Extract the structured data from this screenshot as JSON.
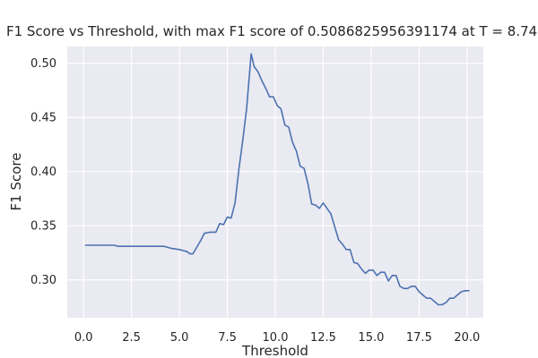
{
  "chart_data": {
    "type": "line",
    "title": "F1 Score vs Threshold, with max F1 score of 0.5086825956391174 at T = 8.74)",
    "xlabel": "Threshold",
    "ylabel": "F1 Score",
    "xlim": [
      -0.85,
      20.85
    ],
    "ylim": [
      0.265,
      0.5155
    ],
    "xticks": [
      0.0,
      2.5,
      5.0,
      7.5,
      10.0,
      12.5,
      15.0,
      17.5,
      20.0
    ],
    "xtick_labels": [
      "0.0",
      "2.5",
      "5.0",
      "7.5",
      "10.0",
      "12.5",
      "15.0",
      "17.5",
      "20.0"
    ],
    "yticks": [
      0.3,
      0.35,
      0.4,
      0.45,
      0.5
    ],
    "ytick_labels": [
      "0.30",
      "0.35",
      "0.40",
      "0.45",
      "0.50"
    ],
    "grid": true,
    "background": "#eaeaf2",
    "series": [
      {
        "color": "#4c72b0",
        "x": [
          0.1,
          1.6,
          1.8,
          4.2,
          4.6,
          5.0,
          5.2,
          5.4,
          5.55,
          5.7,
          6.1,
          6.3,
          6.6,
          6.9,
          7.1,
          7.3,
          7.5,
          7.7,
          7.9,
          8.1,
          8.3,
          8.5,
          8.74,
          8.9,
          9.1,
          9.3,
          9.5,
          9.7,
          9.9,
          10.1,
          10.3,
          10.5,
          10.7,
          10.9,
          11.1,
          11.3,
          11.5,
          11.7,
          11.9,
          12.1,
          12.3,
          12.5,
          12.7,
          12.9,
          13.1,
          13.3,
          13.5,
          13.7,
          13.9,
          14.1,
          14.3,
          14.5,
          14.7,
          14.9,
          15.1,
          15.3,
          15.5,
          15.7,
          15.9,
          16.1,
          16.3,
          16.5,
          16.7,
          16.9,
          17.1,
          17.3,
          17.5,
          17.7,
          17.9,
          18.1,
          18.3,
          18.5,
          18.7,
          18.9,
          19.1,
          19.3,
          19.5,
          19.7,
          19.9,
          20.1
        ],
        "y": [
          0.332,
          0.332,
          0.331,
          0.331,
          0.329,
          0.328,
          0.327,
          0.326,
          0.324,
          0.324,
          0.336,
          0.343,
          0.344,
          0.344,
          0.352,
          0.351,
          0.358,
          0.357,
          0.371,
          0.402,
          0.428,
          0.457,
          0.5087,
          0.497,
          0.492,
          0.484,
          0.477,
          0.469,
          0.469,
          0.461,
          0.458,
          0.443,
          0.441,
          0.427,
          0.419,
          0.405,
          0.403,
          0.389,
          0.37,
          0.369,
          0.366,
          0.371,
          0.366,
          0.361,
          0.349,
          0.337,
          0.333,
          0.328,
          0.328,
          0.316,
          0.315,
          0.31,
          0.306,
          0.309,
          0.309,
          0.304,
          0.307,
          0.307,
          0.299,
          0.304,
          0.304,
          0.294,
          0.292,
          0.292,
          0.294,
          0.294,
          0.289,
          0.286,
          0.283,
          0.283,
          0.28,
          0.277,
          0.277,
          0.279,
          0.283,
          0.283,
          0.286,
          0.289,
          0.29,
          0.29
        ]
      }
    ]
  }
}
